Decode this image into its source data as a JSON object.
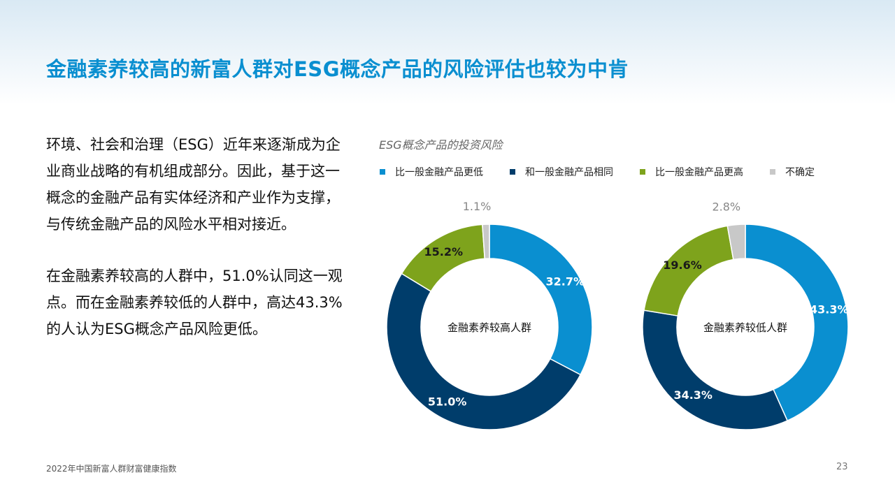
{
  "title": "金融素养较高的新富人群对ESG概念产品的风险评估也较为中肯",
  "body": {
    "paragraph1": "环境、社会和治理（ESG）近年来逐渐成为企业商业战略的有机组成部分。因此，基于这一概念的金融产品有实体经济和产业作为支撑，与传统金融产品的风险水平相对接近。",
    "paragraph2": "在金融素养较高的人群中，51.0%认同这一观点。而在金融素养较低的人群中，高达43.3%的人认为ESG概念产品风险更低。"
  },
  "footer": {
    "source": "2022年中国新富人群财富健康指数",
    "page_number": "23"
  },
  "colors": {
    "title": "#0a8fd0",
    "lower": "#0a8fd0",
    "same": "#003d6b",
    "higher": "#7ea31c",
    "unsure": "#c8c8c8"
  },
  "chart_data": {
    "type": "pie",
    "title": "ESG概念产品的投资风险",
    "legend": [
      "比一般金融产品更低",
      "和一般金融产品相同",
      "比一般金融产品更高",
      "不确定"
    ],
    "legend_position": "top",
    "series": [
      {
        "name": "金融素养较高人群",
        "values": [
          32.7,
          51.0,
          15.2,
          1.1
        ],
        "labels": [
          "32.7%",
          "51.0%",
          "15.2%",
          "1.1%"
        ]
      },
      {
        "name": "金融素养较低人群",
        "values": [
          43.3,
          34.3,
          19.6,
          2.8
        ],
        "labels": [
          "43.3%",
          "34.3%",
          "19.6%",
          "2.8%"
        ]
      }
    ]
  }
}
